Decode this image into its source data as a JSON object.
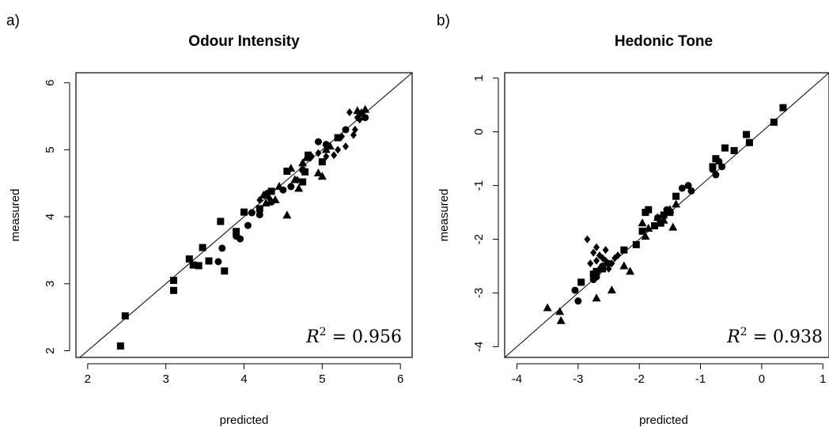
{
  "chart_data": [
    {
      "type": "scatter",
      "panel_label": "a)",
      "title": "Odour Intensity",
      "xlabel": "predicted",
      "ylabel": "measured",
      "xlim": [
        1.85,
        6.15
      ],
      "ylim": [
        1.9,
        6.15
      ],
      "xticks": [
        2,
        3,
        4,
        5,
        6
      ],
      "yticks": [
        2,
        3,
        4,
        5,
        6
      ],
      "reference_line": "y = x",
      "annotation": {
        "prefix": "R",
        "sup": "2",
        "value": " = 0.956"
      },
      "series": [
        {
          "marker": "square",
          "points": [
            [
              2.42,
              2.07
            ],
            [
              2.48,
              2.52
            ],
            [
              3.1,
              3.05
            ],
            [
              3.1,
              2.9
            ],
            [
              3.3,
              3.37
            ],
            [
              3.35,
              3.28
            ],
            [
              3.42,
              3.27
            ],
            [
              3.47,
              3.54
            ],
            [
              3.55,
              3.34
            ],
            [
              3.7,
              3.93
            ],
            [
              3.75,
              3.19
            ],
            [
              3.9,
              3.78
            ],
            [
              4.0,
              4.07
            ],
            [
              4.2,
              4.12
            ],
            [
              4.35,
              4.38
            ],
            [
              4.55,
              4.68
            ],
            [
              4.75,
              4.52
            ],
            [
              4.78,
              4.67
            ],
            [
              4.82,
              4.92
            ],
            [
              5.0,
              4.82
            ],
            [
              5.2,
              5.18
            ]
          ]
        },
        {
          "marker": "circle",
          "points": [
            [
              3.67,
              3.33
            ],
            [
              3.72,
              3.53
            ],
            [
              3.9,
              3.71
            ],
            [
              3.95,
              3.67
            ],
            [
              4.05,
              3.87
            ],
            [
              4.1,
              4.06
            ],
            [
              4.2,
              4.03
            ],
            [
              4.3,
              4.35
            ],
            [
              4.35,
              4.22
            ],
            [
              4.5,
              4.4
            ],
            [
              4.6,
              4.45
            ],
            [
              4.75,
              4.7
            ],
            [
              4.85,
              4.9
            ],
            [
              4.95,
              5.12
            ],
            [
              5.05,
              5.08
            ],
            [
              5.3,
              5.3
            ],
            [
              5.55,
              5.48
            ]
          ]
        },
        {
          "marker": "triangle",
          "points": [
            [
              4.25,
              4.32
            ],
            [
              4.28,
              4.2
            ],
            [
              4.4,
              4.25
            ],
            [
              4.45,
              4.45
            ],
            [
              4.55,
              4.02
            ],
            [
              4.6,
              4.72
            ],
            [
              4.65,
              4.55
            ],
            [
              4.7,
              4.42
            ],
            [
              4.75,
              4.8
            ],
            [
              4.8,
              4.88
            ],
            [
              4.95,
              4.65
            ],
            [
              5.0,
              4.6
            ],
            [
              5.05,
              5.0
            ],
            [
              5.1,
              5.05
            ],
            [
              5.45,
              5.58
            ],
            [
              5.5,
              5.55
            ],
            [
              5.55,
              5.6
            ]
          ]
        },
        {
          "marker": "diamond",
          "points": [
            [
              4.2,
              4.25
            ],
            [
              4.32,
              4.28
            ],
            [
              4.68,
              4.55
            ],
            [
              4.85,
              4.88
            ],
            [
              4.95,
              4.95
            ],
            [
              5.05,
              4.9
            ],
            [
              5.15,
              4.92
            ],
            [
              5.2,
              5.0
            ],
            [
              5.25,
              5.2
            ],
            [
              5.3,
              5.05
            ],
            [
              5.4,
              5.22
            ],
            [
              5.42,
              5.3
            ],
            [
              5.45,
              5.48
            ],
            [
              5.48,
              5.45
            ],
            [
              5.5,
              5.55
            ],
            [
              5.35,
              5.56
            ]
          ]
        }
      ]
    },
    {
      "type": "scatter",
      "panel_label": "b)",
      "title": "Hedonic Tone",
      "xlabel": "predicted",
      "ylabel": "measured",
      "xlim": [
        -4.2,
        1.1
      ],
      "ylim": [
        -4.2,
        1.1
      ],
      "xticks": [
        -4,
        -3,
        -2,
        -1,
        0,
        1
      ],
      "yticks": [
        -4,
        -3,
        -2,
        -1,
        0,
        1
      ],
      "reference_line": "y = x",
      "annotation": {
        "prefix": "R",
        "sup": "2",
        "value": " = 0.938"
      },
      "series": [
        {
          "marker": "square",
          "points": [
            [
              -2.95,
              -2.8
            ],
            [
              -2.75,
              -2.65
            ],
            [
              -2.7,
              -2.6
            ],
            [
              -2.6,
              -2.55
            ],
            [
              -2.25,
              -2.2
            ],
            [
              -2.05,
              -2.1
            ],
            [
              -1.95,
              -1.85
            ],
            [
              -1.9,
              -1.5
            ],
            [
              -1.85,
              -1.45
            ],
            [
              -1.75,
              -1.75
            ],
            [
              -1.65,
              -1.7
            ],
            [
              -1.6,
              -1.55
            ],
            [
              -1.5,
              -1.5
            ],
            [
              -1.4,
              -1.2
            ],
            [
              -0.8,
              -0.65
            ],
            [
              -0.75,
              -0.5
            ],
            [
              -0.6,
              -0.3
            ],
            [
              -0.45,
              -0.35
            ],
            [
              -0.25,
              -0.05
            ],
            [
              -0.2,
              -0.2
            ],
            [
              0.2,
              0.18
            ],
            [
              0.35,
              0.45
            ]
          ]
        },
        {
          "marker": "circle",
          "points": [
            [
              -3.05,
              -2.95
            ],
            [
              -3.0,
              -3.15
            ],
            [
              -2.75,
              -2.75
            ],
            [
              -2.7,
              -2.7
            ],
            [
              -2.6,
              -2.5
            ],
            [
              -2.5,
              -2.45
            ],
            [
              -1.7,
              -1.6
            ],
            [
              -1.55,
              -1.45
            ],
            [
              -1.5,
              -1.5
            ],
            [
              -1.3,
              -1.05
            ],
            [
              -1.2,
              -1.0
            ],
            [
              -1.15,
              -1.1
            ],
            [
              -0.8,
              -0.7
            ],
            [
              -0.75,
              -0.8
            ],
            [
              -0.7,
              -0.55
            ],
            [
              -0.65,
              -0.65
            ]
          ]
        },
        {
          "marker": "triangle",
          "points": [
            [
              -3.5,
              -3.28
            ],
            [
              -3.3,
              -3.35
            ],
            [
              -3.28,
              -3.52
            ],
            [
              -2.7,
              -3.1
            ],
            [
              -2.45,
              -2.95
            ],
            [
              -2.25,
              -2.5
            ],
            [
              -2.15,
              -2.6
            ],
            [
              -1.95,
              -1.7
            ],
            [
              -1.9,
              -1.95
            ],
            [
              -1.85,
              -1.8
            ],
            [
              -1.7,
              -1.6
            ],
            [
              -1.6,
              -1.65
            ],
            [
              -1.5,
              -1.45
            ],
            [
              -1.45,
              -1.78
            ],
            [
              -1.4,
              -1.35
            ]
          ]
        },
        {
          "marker": "diamond",
          "points": [
            [
              -2.85,
              -2.0
            ],
            [
              -2.7,
              -2.15
            ],
            [
              -2.75,
              -2.25
            ],
            [
              -2.8,
              -2.45
            ],
            [
              -2.65,
              -2.3
            ],
            [
              -2.6,
              -2.35
            ],
            [
              -2.55,
              -2.4
            ],
            [
              -2.5,
              -2.55
            ],
            [
              -2.45,
              -2.45
            ],
            [
              -2.4,
              -2.35
            ],
            [
              -2.35,
              -2.3
            ],
            [
              -2.65,
              -2.55
            ],
            [
              -2.7,
              -2.4
            ],
            [
              -2.55,
              -2.2
            ]
          ]
        }
      ]
    }
  ]
}
